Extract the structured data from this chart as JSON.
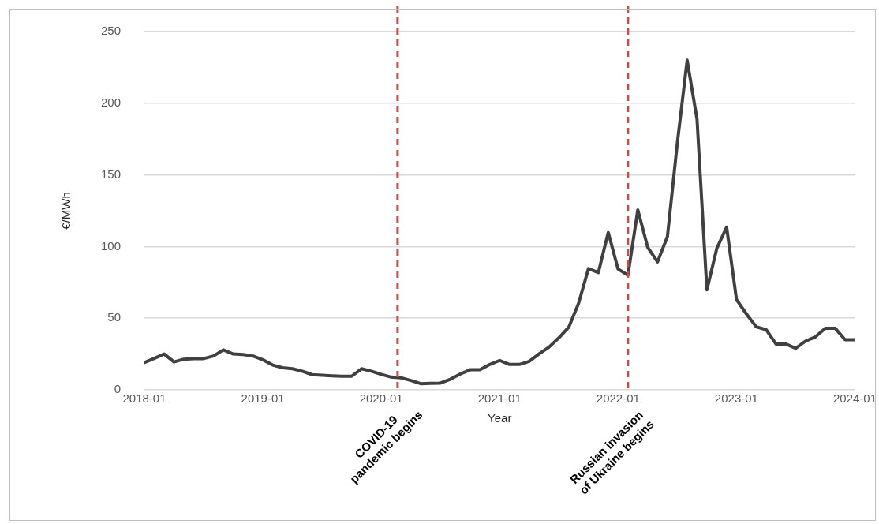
{
  "chart_data": {
    "type": "line",
    "xlabel": "Year",
    "ylabel": "€/MWh",
    "x": [
      "2018-01",
      "2018-02",
      "2018-03",
      "2018-04",
      "2018-05",
      "2018-06",
      "2018-07",
      "2018-08",
      "2018-09",
      "2018-10",
      "2018-11",
      "2018-12",
      "2019-01",
      "2019-02",
      "2019-03",
      "2019-04",
      "2019-05",
      "2019-06",
      "2019-07",
      "2019-08",
      "2019-09",
      "2019-10",
      "2019-11",
      "2019-12",
      "2020-01",
      "2020-02",
      "2020-03",
      "2020-04",
      "2020-05",
      "2020-06",
      "2020-07",
      "2020-08",
      "2020-09",
      "2020-10",
      "2020-11",
      "2020-12",
      "2021-01",
      "2021-02",
      "2021-03",
      "2021-04",
      "2021-05",
      "2021-06",
      "2021-07",
      "2021-08",
      "2021-09",
      "2021-10",
      "2021-11",
      "2021-12",
      "2022-01",
      "2022-02",
      "2022-03",
      "2022-04",
      "2022-05",
      "2022-06",
      "2022-07",
      "2022-08",
      "2022-09",
      "2022-10",
      "2022-11",
      "2022-12",
      "2023-01",
      "2023-02",
      "2023-03",
      "2023-04",
      "2023-05",
      "2023-06",
      "2023-07",
      "2023-08",
      "2023-09",
      "2023-10",
      "2023-11",
      "2023-12",
      "2024-01"
    ],
    "series": [
      {
        "color": "#404040",
        "values": [
          19,
          22,
          25,
          19.5,
          21.4,
          21.8,
          21.8,
          23.6,
          27.9,
          25,
          24.6,
          23.6,
          21,
          17.3,
          15.4,
          14.7,
          13,
          10.6,
          10.2,
          9.8,
          9.5,
          9.5,
          14.7,
          13,
          10.8,
          8.9,
          8.4,
          6.5,
          4.3,
          4.5,
          4.7,
          7.4,
          11,
          14,
          14,
          17.7,
          20.5,
          17.7,
          17.7,
          19.9,
          25.1,
          29.8,
          36.3,
          43.7,
          60.4,
          84.6,
          81.8,
          109.8,
          84.3,
          80,
          125.6,
          99.5,
          89.3,
          107,
          172,
          230,
          188.8,
          69.8,
          98.6,
          113.5,
          63,
          53,
          44,
          42,
          32,
          32,
          29,
          34,
          37,
          43,
          43,
          35,
          35
        ]
      }
    ],
    "xlim": [
      "2018-01",
      "2024-01"
    ],
    "xticks": [
      "2018-01",
      "2019-01",
      "2020-01",
      "2021-01",
      "2022-01",
      "2023-01",
      "2024-01"
    ],
    "ylim": [
      0,
      250
    ],
    "yticks": [
      0,
      50,
      100,
      150,
      200,
      250
    ],
    "grid": "y",
    "legend": false,
    "marker": "none",
    "line_style": "solid",
    "ref_lines": [
      {
        "axis": "x",
        "value": "2020-02-20",
        "label": "COVID-19\npandemic begins",
        "color": "#c0504d",
        "line_style": "dashed"
      },
      {
        "axis": "x",
        "value": "2022-02-01",
        "label": "Russian invasion\nof Ukraine begins",
        "color": "#c0504d",
        "line_style": "dashed"
      }
    ]
  }
}
